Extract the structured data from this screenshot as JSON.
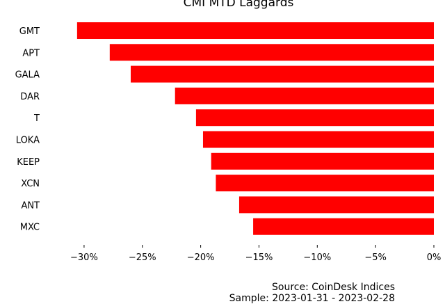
{
  "chart_data": {
    "type": "bar",
    "orientation": "horizontal",
    "title": "CMI MTD Laggards",
    "categories": [
      "GMT",
      "APT",
      "GALA",
      "DAR",
      "T",
      "LOKA",
      "KEEP",
      "XCN",
      "ANT",
      "MXC"
    ],
    "values": [
      -30.6,
      -27.8,
      -26.0,
      -22.2,
      -20.4,
      -19.8,
      -19.1,
      -18.7,
      -16.7,
      -15.5
    ],
    "xlim": [
      -32.5,
      0
    ],
    "xticks": [
      -30,
      -25,
      -20,
      -15,
      -10,
      -5,
      0
    ],
    "tick_labels": [
      "−30%",
      "−25%",
      "−20%",
      "−15%",
      "−10%",
      "−5%",
      "0%"
    ],
    "bar_color": "#ff0000",
    "grid": false
  },
  "footer": {
    "source": "Source: CoinDesk Indices",
    "sample": "Sample: 2023-01-31 - 2023-02-28"
  }
}
